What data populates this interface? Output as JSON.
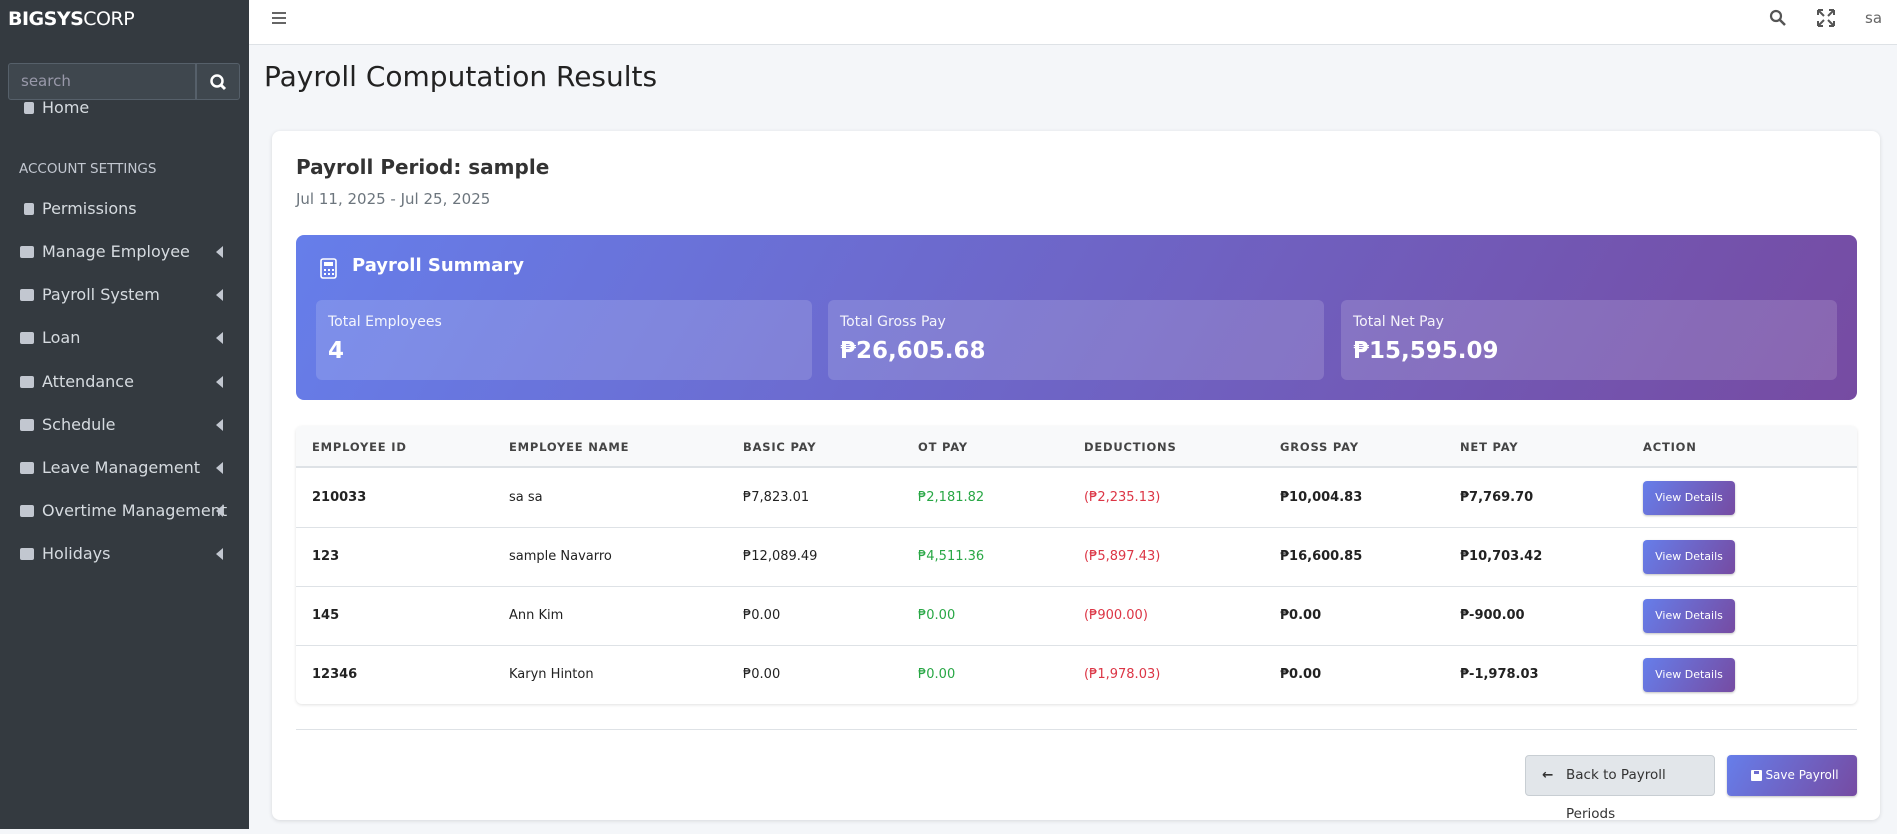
{
  "sidebar": {
    "brand_bold": "BIGSYS",
    "brand_light": "CORP",
    "search_placeholder": "search",
    "nav": [
      {
        "label": "Home"
      },
      {
        "label": "ACCOUNT SETTINGS"
      },
      {
        "label": "Permissions"
      },
      {
        "label": "Manage Employee"
      },
      {
        "label": "Payroll System"
      },
      {
        "label": "Loan"
      },
      {
        "label": "Attendance"
      },
      {
        "label": "Schedule"
      },
      {
        "label": "Leave Management"
      },
      {
        "label": "Overtime Management"
      },
      {
        "label": "Holidays"
      }
    ]
  },
  "topbar": {
    "user": "sa"
  },
  "header": {
    "title": "Payroll Computation Results"
  },
  "period": {
    "title": "Payroll Period: sample",
    "dates": "Jul 11, 2025 - Jul 25, 2025"
  },
  "summary": {
    "title": "Payroll Summary",
    "cards": [
      {
        "label": "Total Employees",
        "value": "4"
      },
      {
        "label": "Total Gross Pay",
        "value": "₱26,605.68"
      },
      {
        "label": "Total Net Pay",
        "value": "₱15,595.09"
      }
    ]
  },
  "table": {
    "headers": [
      "EMPLOYEE ID",
      "EMPLOYEE NAME",
      "BASIC PAY",
      "OT PAY",
      "DEDUCTIONS",
      "GROSS PAY",
      "NET PAY",
      "ACTION"
    ],
    "rows": [
      [
        "210033",
        "sa sa",
        "₱7,823.01",
        "₱2,181.82",
        "(₱2,235.13)",
        "₱10,004.83",
        "₱7,769.70",
        "View Details"
      ],
      [
        "123",
        "sample Navarro",
        "₱12,089.49",
        "₱4,511.36",
        "(₱5,897.43)",
        "₱16,600.85",
        "₱10,703.42",
        "View Details"
      ],
      [
        "145",
        "Ann Kim",
        "₱0.00",
        "₱0.00",
        "(₱900.00)",
        "₱0.00",
        "₱-900.00",
        "View Details"
      ],
      [
        "12346",
        "Karyn Hinton",
        "₱0.00",
        "₱0.00",
        "(₱1,978.03)",
        "₱0.00",
        "₱-1,978.03",
        "View Details"
      ]
    ]
  },
  "buttons": {
    "back": "Back to Payroll Periods",
    "save": "Save Payroll"
  }
}
